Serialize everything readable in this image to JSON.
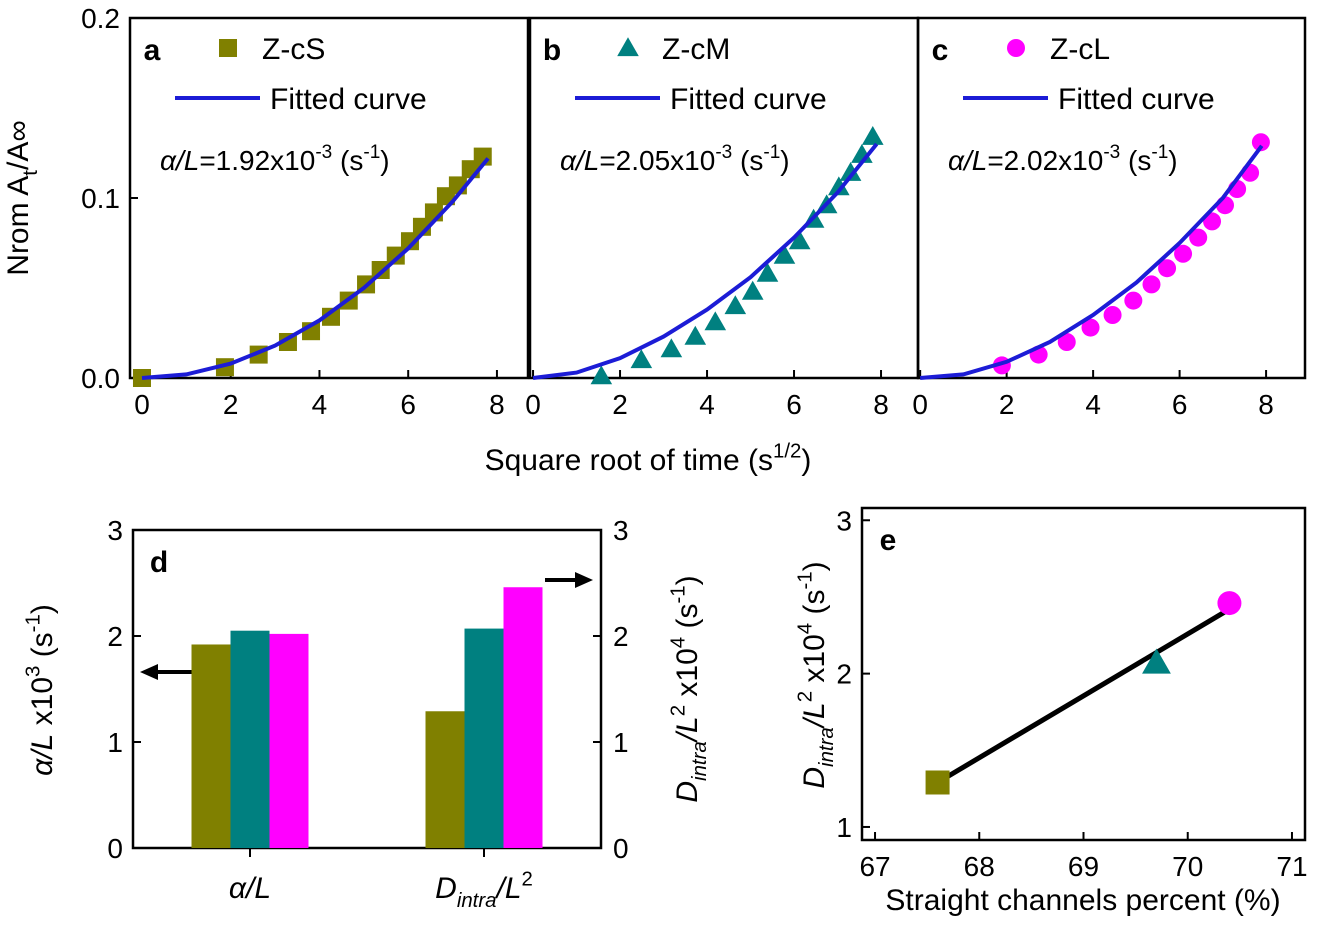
{
  "chart_data": [
    {
      "type": "scatter",
      "label": "a",
      "ylabel": [
        "Nrom A",
        {
          "sub": "t"
        },
        "/A∞"
      ],
      "annotation": [
        {
          "i": "α/L"
        },
        "=1.92x10",
        {
          "sup": "-3"
        },
        " (s",
        {
          "sup": "-1"
        },
        ")"
      ],
      "xlim": [
        -0.27,
        8.7
      ],
      "xticks": [
        0,
        2,
        4,
        6,
        8
      ],
      "ylim": [
        0,
        0.2
      ],
      "yticks": [
        {
          "value": 0,
          "label": "0.0"
        },
        {
          "value": 0.1,
          "label": "0.1"
        },
        {
          "value": 0.2,
          "label": "0.2"
        }
      ],
      "series": [
        {
          "name": "Z-cS",
          "color": "#808000",
          "marker": "square",
          "x": [
            0,
            1.87,
            2.63,
            3.29,
            3.81,
            4.26,
            4.66,
            5.05,
            5.38,
            5.72,
            6.04,
            6.31,
            6.58,
            6.85,
            7.12,
            7.41,
            7.68
          ],
          "values": [
            0,
            0.006,
            0.013,
            0.02,
            0.026,
            0.034,
            0.043,
            0.052,
            0.06,
            0.068,
            0.076,
            0.084,
            0.092,
            0.101,
            0.107,
            0.116,
            0.123
          ]
        },
        {
          "name": "Fitted curve",
          "color": "#1c1cd6",
          "x": [
            0,
            1,
            2,
            3,
            4,
            5,
            6,
            7,
            7.8
          ],
          "values": [
            0,
            0.002,
            0.008,
            0.018,
            0.032,
            0.05,
            0.072,
            0.098,
            0.122
          ]
        }
      ]
    },
    {
      "type": "scatter",
      "label": "b",
      "xlabel": [
        "Square root of time  (s",
        {
          "sup": "1/2"
        },
        ")"
      ],
      "annotation": [
        {
          "i": "α/L"
        },
        "=2.05x10",
        {
          "sup": "-3"
        },
        " (s",
        {
          "sup": "-1"
        },
        ")"
      ],
      "xlim": [
        -0.07,
        8.85
      ],
      "xticks": [
        0,
        2,
        4,
        6,
        8
      ],
      "ylim": [
        0,
        0.2
      ],
      "series": [
        {
          "name": "Z-cM",
          "color": "#008080",
          "marker": "triangle",
          "x": [
            1.57,
            2.49,
            3.18,
            3.73,
            4.19,
            4.65,
            5.05,
            5.39,
            5.78,
            6.13,
            6.45,
            6.75,
            7.03,
            7.3,
            7.56,
            7.81
          ],
          "values": [
            0.001,
            0.01,
            0.016,
            0.023,
            0.031,
            0.04,
            0.048,
            0.058,
            0.068,
            0.076,
            0.088,
            0.096,
            0.106,
            0.114,
            0.124,
            0.134
          ]
        },
        {
          "name": "Fitted curve",
          "color": "#1c1cd6",
          "x": [
            0,
            1,
            2,
            3,
            4,
            5,
            6,
            7,
            7.9
          ],
          "values": [
            0,
            0.003,
            0.011,
            0.023,
            0.038,
            0.056,
            0.078,
            0.103,
            0.13
          ]
        }
      ]
    },
    {
      "type": "scatter",
      "label": "c",
      "annotation": [
        {
          "i": "α/L"
        },
        "=2.02x10",
        {
          "sup": "-3"
        },
        " (s",
        {
          "sup": "-1"
        },
        ")"
      ],
      "xlim": [
        -0.05,
        8.9
      ],
      "xticks": [
        0,
        2,
        4,
        6,
        8
      ],
      "ylim": [
        0,
        0.2
      ],
      "series": [
        {
          "name": "Z-cL",
          "color": "#ff00ff",
          "marker": "circle",
          "x": [
            1.89,
            2.74,
            3.39,
            3.94,
            4.45,
            4.93,
            5.35,
            5.71,
            6.08,
            6.43,
            6.75,
            7.05,
            7.33,
            7.63,
            7.88
          ],
          "values": [
            0.007,
            0.013,
            0.02,
            0.028,
            0.035,
            0.043,
            0.052,
            0.061,
            0.069,
            0.078,
            0.087,
            0.096,
            0.105,
            0.114,
            0.131
          ]
        },
        {
          "name": "Fitted curve",
          "color": "#1c1cd6",
          "x": [
            0,
            1,
            2,
            3,
            4,
            5,
            6,
            7,
            7.9
          ],
          "values": [
            0,
            0.002,
            0.009,
            0.02,
            0.035,
            0.053,
            0.075,
            0.1,
            0.129
          ]
        }
      ]
    },
    {
      "type": "bar",
      "label": "d",
      "ylabel": [
        {
          "i": "α/L"
        },
        " x10",
        {
          "sup": "3"
        },
        " (s",
        {
          "sup": "-1"
        },
        ")"
      ],
      "y2label": [
        {
          "i": "D"
        },
        {
          "isub": "intra"
        },
        {
          "i": "/L"
        },
        {
          "sup": "2"
        },
        " x10",
        {
          "sup": "4"
        },
        " (s",
        {
          "sup": "-1"
        },
        ")"
      ],
      "categories": [
        [
          {
            "i": "α/L"
          }
        ],
        [
          {
            "i": "D"
          },
          {
            "isub": "intra"
          },
          {
            "i": "/L"
          },
          {
            "sup": "2"
          }
        ]
      ],
      "category_axes": [
        "y",
        "y2"
      ],
      "ylim": [
        0,
        3
      ],
      "yticks": [
        0,
        1,
        2,
        3
      ],
      "y2lim": [
        0,
        3
      ],
      "y2ticks": [
        0,
        1,
        2,
        3
      ],
      "series": [
        {
          "color": "#808000",
          "values": [
            1.92,
            1.29
          ]
        },
        {
          "color": "#008080",
          "values": [
            2.05,
            2.07
          ]
        },
        {
          "color": "#ff00ff",
          "values": [
            2.02,
            2.46
          ]
        }
      ]
    },
    {
      "type": "scatter",
      "label": "e",
      "xlabel": "Straight channels percent (%)",
      "ylabel": [
        {
          "i": "D"
        },
        {
          "isub": "intra"
        },
        {
          "i": "/L"
        },
        {
          "sup": "2"
        },
        " x10",
        {
          "sup": "4"
        },
        " (s",
        {
          "sup": "-1"
        },
        ")"
      ],
      "xlim": [
        66.875,
        71.125
      ],
      "xticks": [
        67,
        68,
        69,
        70,
        71
      ],
      "ylim": [
        0.915,
        3.08
      ],
      "yticks": [
        1,
        2,
        3
      ],
      "series": [
        {
          "color": "#000000",
          "x": [
            67.6,
            70.4
          ],
          "values": [
            1.29,
            2.42
          ]
        },
        {
          "color": "#808000",
          "marker": "square",
          "x": [
            67.6
          ],
          "values": [
            1.29
          ]
        },
        {
          "color": "#008080",
          "marker": "triangle",
          "x": [
            69.7
          ],
          "values": [
            2.07
          ]
        },
        {
          "color": "#ff00ff",
          "marker": "circle",
          "x": [
            70.4
          ],
          "values": [
            2.46
          ]
        }
      ]
    }
  ]
}
